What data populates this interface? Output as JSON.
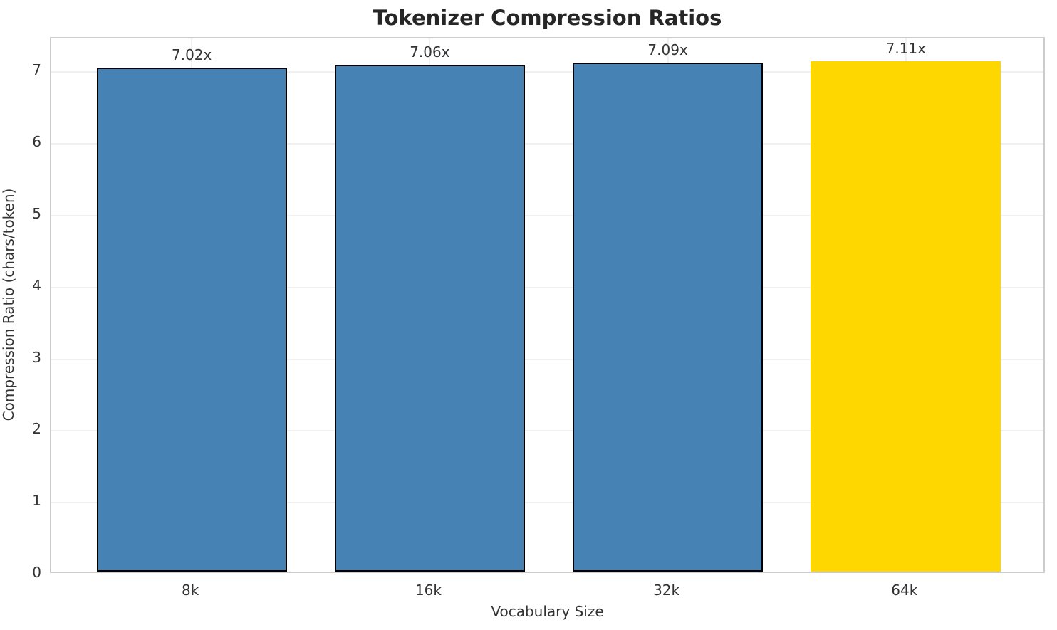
{
  "chart_data": {
    "type": "bar",
    "title": "Tokenizer Compression Ratios",
    "xlabel": "Vocabulary Size",
    "ylabel": "Compression Ratio (chars/token)",
    "categories": [
      "8k",
      "16k",
      "32k",
      "64k"
    ],
    "values": [
      7.02,
      7.06,
      7.09,
      7.11
    ],
    "bar_labels": [
      "7.02x",
      "7.06x",
      "7.09x",
      "7.11x"
    ],
    "bar_colors": [
      "#4682B4",
      "#4682B4",
      "#4682B4",
      "#FFD700"
    ],
    "bar_edge_colors": [
      "#000000",
      "#000000",
      "#000000",
      "none"
    ],
    "yticks": [
      0,
      1,
      2,
      3,
      4,
      5,
      6,
      7
    ],
    "ylim": [
      0,
      7.47
    ],
    "bar_width_fraction": 0.8,
    "grid": true,
    "legend_position": "none",
    "grid_color": "#f0f0f0",
    "spine_color": "#cccccc",
    "text_color": "#333333",
    "title_color": "#262626"
  }
}
